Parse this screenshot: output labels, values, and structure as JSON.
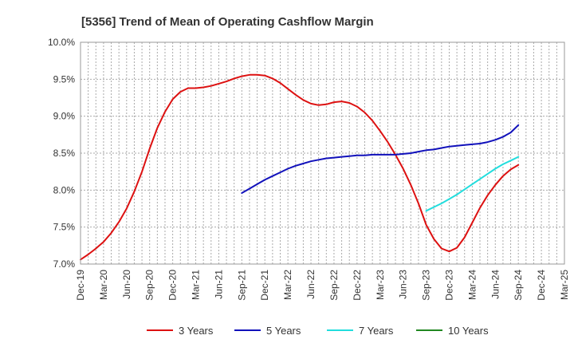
{
  "chart_data": {
    "type": "line",
    "title": "[5356]  Trend of Mean of Operating Cashflow Margin",
    "xlabel": "",
    "ylabel": "",
    "ylim": [
      7.0,
      10.0
    ],
    "y_ticks": [
      "7.0%",
      "7.5%",
      "8.0%",
      "8.5%",
      "9.0%",
      "9.5%",
      "10.0%"
    ],
    "x_ticks": [
      "Dec-19",
      "Mar-20",
      "Jun-20",
      "Sep-20",
      "Dec-20",
      "Mar-21",
      "Jun-21",
      "Sep-21",
      "Dec-21",
      "Mar-22",
      "Jun-22",
      "Sep-22",
      "Dec-22",
      "Mar-23",
      "Jun-23",
      "Sep-23",
      "Dec-23",
      "Mar-24",
      "Jun-24",
      "Sep-24",
      "Dec-24",
      "Mar-25"
    ],
    "grid": true,
    "legend_position": "bottom",
    "series": [
      {
        "name": "3 Years",
        "color": "#dd1111",
        "x": [
          "Dec-19",
          "Jan-20",
          "Feb-20",
          "Mar-20",
          "Apr-20",
          "May-20",
          "Jun-20",
          "Jul-20",
          "Aug-20",
          "Sep-20",
          "Oct-20",
          "Nov-20",
          "Dec-20",
          "Jan-21",
          "Feb-21",
          "Mar-21",
          "Apr-21",
          "May-21",
          "Jun-21",
          "Jul-21",
          "Aug-21",
          "Sep-21",
          "Oct-21",
          "Nov-21",
          "Dec-21",
          "Jan-22",
          "Feb-22",
          "Mar-22",
          "Apr-22",
          "May-22",
          "Jun-22",
          "Jul-22",
          "Aug-22",
          "Sep-22",
          "Oct-22",
          "Nov-22",
          "Dec-22",
          "Jan-23",
          "Feb-23",
          "Mar-23",
          "Apr-23",
          "May-23",
          "Jun-23",
          "Jul-23",
          "Aug-23",
          "Sep-23",
          "Oct-23",
          "Nov-23",
          "Dec-23",
          "Jan-24",
          "Feb-24",
          "Mar-24",
          "Apr-24",
          "May-24",
          "Jun-24",
          "Jul-24",
          "Aug-24",
          "Sep-24"
        ],
        "values": [
          7.06,
          7.13,
          7.21,
          7.3,
          7.42,
          7.57,
          7.75,
          7.98,
          8.25,
          8.56,
          8.84,
          9.06,
          9.23,
          9.33,
          9.38,
          9.38,
          9.39,
          9.41,
          9.44,
          9.47,
          9.51,
          9.54,
          9.56,
          9.56,
          9.55,
          9.51,
          9.45,
          9.37,
          9.29,
          9.22,
          9.17,
          9.15,
          9.16,
          9.19,
          9.2,
          9.18,
          9.13,
          9.05,
          8.94,
          8.8,
          8.65,
          8.48,
          8.29,
          8.07,
          7.82,
          7.53,
          7.34,
          7.21,
          7.17,
          7.22,
          7.36,
          7.56,
          7.76,
          7.93,
          8.07,
          8.19,
          8.28,
          8.34
        ]
      },
      {
        "name": "5 Years",
        "color": "#1111bb",
        "x": [
          "Sep-21",
          "Oct-21",
          "Nov-21",
          "Dec-21",
          "Jan-22",
          "Feb-22",
          "Mar-22",
          "Apr-22",
          "May-22",
          "Jun-22",
          "Jul-22",
          "Aug-22",
          "Sep-22",
          "Oct-22",
          "Nov-22",
          "Dec-22",
          "Jan-23",
          "Feb-23",
          "Mar-23",
          "Apr-23",
          "May-23",
          "Jun-23",
          "Jul-23",
          "Aug-23",
          "Sep-23",
          "Oct-23",
          "Nov-23",
          "Dec-23",
          "Jan-24",
          "Feb-24",
          "Mar-24",
          "Apr-24",
          "May-24",
          "Jun-24",
          "Jul-24",
          "Aug-24",
          "Sep-24"
        ],
        "values": [
          7.96,
          8.02,
          8.08,
          8.14,
          8.19,
          8.24,
          8.29,
          8.33,
          8.36,
          8.39,
          8.41,
          8.43,
          8.44,
          8.45,
          8.46,
          8.47,
          8.47,
          8.48,
          8.48,
          8.48,
          8.48,
          8.49,
          8.5,
          8.52,
          8.54,
          8.55,
          8.57,
          8.59,
          8.6,
          8.61,
          8.62,
          8.63,
          8.65,
          8.68,
          8.72,
          8.78,
          8.88
        ]
      },
      {
        "name": "7 Years",
        "color": "#22dddd",
        "x": [
          "Sep-23",
          "Oct-23",
          "Nov-23",
          "Dec-23",
          "Jan-24",
          "Feb-24",
          "Mar-24",
          "Apr-24",
          "May-24",
          "Jun-24",
          "Jul-24",
          "Aug-24",
          "Sep-24"
        ],
        "values": [
          7.72,
          7.77,
          7.82,
          7.88,
          7.94,
          8.01,
          8.08,
          8.15,
          8.22,
          8.29,
          8.35,
          8.4,
          8.45
        ]
      },
      {
        "name": "10 Years",
        "color": "#228822",
        "x": [],
        "values": []
      }
    ]
  }
}
